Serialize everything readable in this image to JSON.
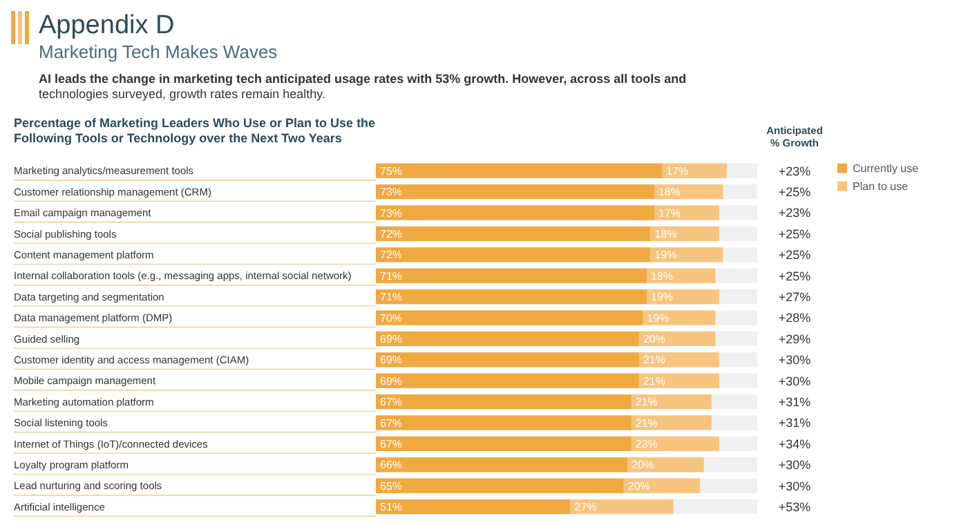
{
  "chart_data": {
    "type": "bar",
    "orientation": "horizontal",
    "stacked": true,
    "title": "Appendix D",
    "subtitle": "Marketing Tech Makes Waves",
    "categories": [
      "Marketing analytics/measurement tools",
      "Customer relationship management (CRM)",
      "Email campaign management",
      "Social publishing tools",
      "Content management platform",
      "Internal collaboration tools (e.g., messaging apps, internal social network)",
      "Data targeting and segmentation",
      "Data management platform (DMP)",
      "Guided selling",
      "Customer identity and access management (CIAM)",
      "Mobile campaign management",
      "Marketing automation platform",
      "Social listening tools",
      "Internet of Things (IoT)/connected devices",
      "Loyalty program platform",
      "Lead nurturing and scoring tools",
      "Artificial intelligence"
    ],
    "series": [
      {
        "name": "Currently use",
        "color": "#f0a840",
        "values": [
          75,
          73,
          73,
          72,
          72,
          71,
          71,
          70,
          69,
          69,
          69,
          67,
          67,
          67,
          66,
          65,
          51
        ],
        "value_labels": [
          "75%",
          "73%",
          "73%",
          "72%",
          "72%",
          "71%",
          "71%",
          "70%",
          "69%",
          "69%",
          "69%",
          "67%",
          "67%",
          "67%",
          "66%",
          "65%",
          "51%"
        ]
      },
      {
        "name": "Plan to use",
        "color": "#f6c47e",
        "values": [
          17,
          18,
          17,
          18,
          19,
          18,
          19,
          19,
          20,
          21,
          21,
          21,
          21,
          23,
          20,
          20,
          27
        ],
        "value_labels": [
          "17%",
          "18%",
          "17%",
          "18%",
          "19%",
          "18%",
          "19%",
          "19%",
          "20%",
          "21%",
          "21%",
          "21%",
          "21%",
          "23%",
          "20%",
          "20%",
          "27%"
        ]
      }
    ],
    "legend": "right",
    "annotations": [
      "AI leads the change in marketing tech anticipated usage rates with 53% growth. However, across all tools and technologies surveyed, growth rates remain healthy.",
      "Percentage of Marketing Leaders Who Use or Plan to Use the Following Tools or Technology over the Next Two Years",
      "Anticipated % Growth",
      "+23%",
      "+25%",
      "+23%",
      "+25%",
      "+25%",
      "+25%",
      "+27%",
      "+28%",
      "+29%",
      "+30%",
      "+30%",
      "+31%",
      "+31%",
      "+34%",
      "+30%",
      "+30%",
      "+53%"
    ]
  }
}
